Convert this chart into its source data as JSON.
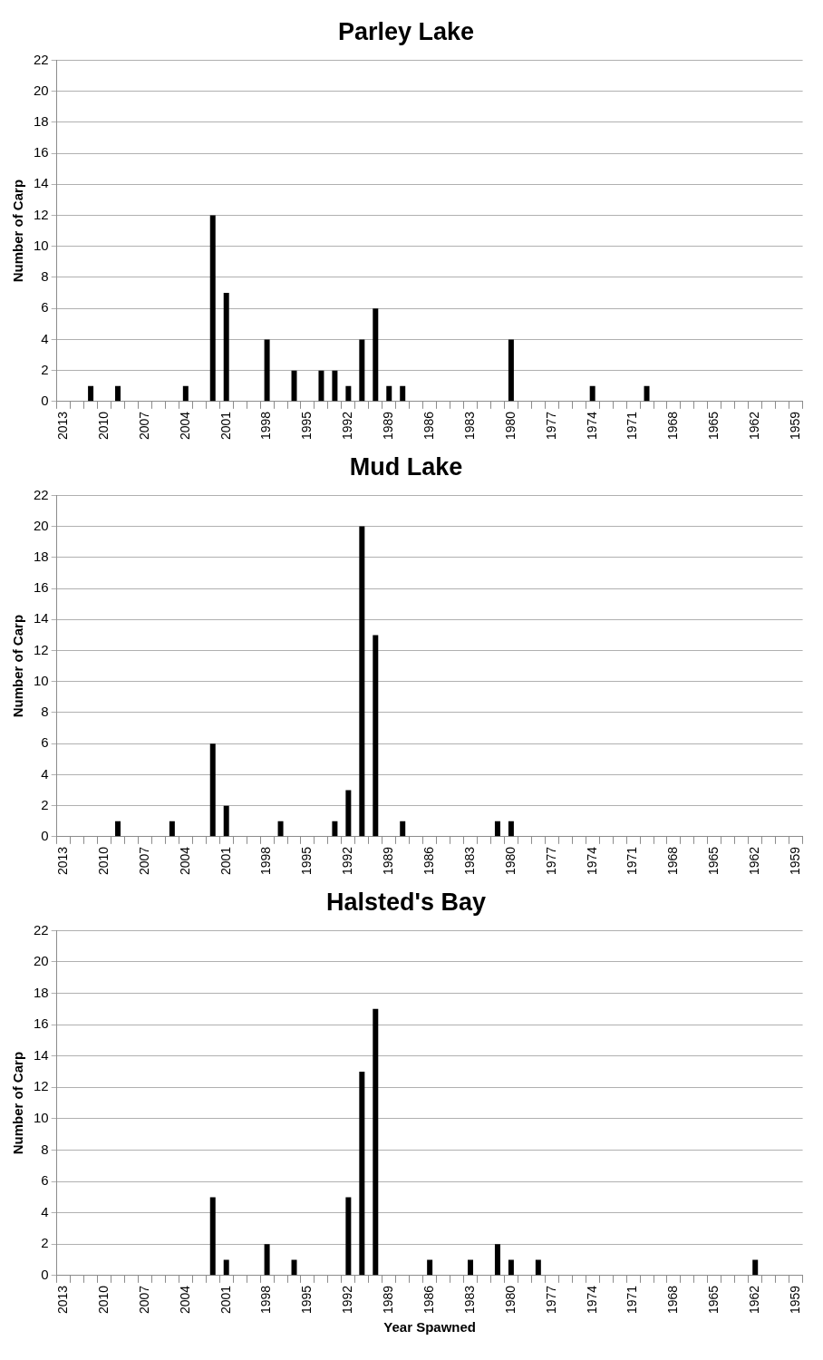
{
  "chart_data": [
    {
      "type": "bar",
      "title": "Parley Lake",
      "ylabel": "Number of Carp",
      "categories": [
        "2013",
        null,
        null,
        "2010",
        null,
        null,
        "2007",
        null,
        null,
        "2004",
        null,
        null,
        "2001",
        null,
        null,
        "1998",
        null,
        null,
        "1995",
        null,
        null,
        "1992",
        null,
        null,
        "1989",
        null,
        null,
        "1986",
        null,
        null,
        "1983",
        null,
        null,
        "1980",
        null,
        null,
        "1977",
        null,
        null,
        "1974",
        null,
        null,
        "1971",
        null,
        null,
        "1968",
        null,
        null,
        "1965",
        null,
        null,
        "1962",
        null,
        null,
        "1959"
      ],
      "values": [
        0,
        0,
        1,
        0,
        1,
        0,
        0,
        0,
        0,
        1,
        0,
        12,
        7,
        0,
        0,
        4,
        0,
        2,
        0,
        2,
        2,
        1,
        4,
        6,
        1,
        1,
        0,
        0,
        0,
        0,
        0,
        0,
        0,
        4,
        0,
        0,
        0,
        0,
        0,
        1,
        0,
        0,
        0,
        1,
        0,
        0,
        0,
        0,
        0,
        0,
        0,
        0,
        0,
        0,
        0
      ],
      "color": "#000000",
      "ylim": [
        0,
        22
      ],
      "yticks": [
        0,
        2,
        4,
        6,
        8,
        10,
        12,
        14,
        16,
        18,
        20,
        22
      ],
      "grid": "y",
      "legend": false
    },
    {
      "type": "bar",
      "title": "Mud Lake",
      "ylabel": "Number of Carp",
      "categories": [
        "2013",
        null,
        null,
        "2010",
        null,
        null,
        "2007",
        null,
        null,
        "2004",
        null,
        null,
        "2001",
        null,
        null,
        "1998",
        null,
        null,
        "1995",
        null,
        null,
        "1992",
        null,
        null,
        "1989",
        null,
        null,
        "1986",
        null,
        null,
        "1983",
        null,
        null,
        "1980",
        null,
        null,
        "1977",
        null,
        null,
        "1974",
        null,
        null,
        "1971",
        null,
        null,
        "1968",
        null,
        null,
        "1965",
        null,
        null,
        "1962",
        null,
        null,
        "1959"
      ],
      "values": [
        0,
        0,
        0,
        0,
        1,
        0,
        0,
        0,
        1,
        0,
        0,
        6,
        2,
        0,
        0,
        0,
        1,
        0,
        0,
        0,
        1,
        3,
        20,
        13,
        0,
        1,
        0,
        0,
        0,
        0,
        0,
        0,
        1,
        1,
        0,
        0,
        0,
        0,
        0,
        0,
        0,
        0,
        0,
        0,
        0,
        0,
        0,
        0,
        0,
        0,
        0,
        0,
        0,
        0,
        0
      ],
      "color": "#000000",
      "ylim": [
        0,
        22
      ],
      "yticks": [
        0,
        2,
        4,
        6,
        8,
        10,
        12,
        14,
        16,
        18,
        20,
        22
      ],
      "grid": "y",
      "legend": false
    },
    {
      "type": "bar",
      "title": "Halsted's Bay",
      "ylabel": "Number of Carp",
      "xlabel": "Year Spawned",
      "categories": [
        "2013",
        null,
        null,
        "2010",
        null,
        null,
        "2007",
        null,
        null,
        "2004",
        null,
        null,
        "2001",
        null,
        null,
        "1998",
        null,
        null,
        "1995",
        null,
        null,
        "1992",
        null,
        null,
        "1989",
        null,
        null,
        "1986",
        null,
        null,
        "1983",
        null,
        null,
        "1980",
        null,
        null,
        "1977",
        null,
        null,
        "1974",
        null,
        null,
        "1971",
        null,
        null,
        "1968",
        null,
        null,
        "1965",
        null,
        null,
        "1962",
        null,
        null,
        "1959"
      ],
      "values": [
        0,
        0,
        0,
        0,
        0,
        0,
        0,
        0,
        0,
        0,
        0,
        5,
        1,
        0,
        0,
        2,
        0,
        1,
        0,
        0,
        0,
        5,
        13,
        17,
        0,
        0,
        0,
        1,
        0,
        0,
        1,
        0,
        2,
        1,
        0,
        1,
        0,
        0,
        0,
        0,
        0,
        0,
        0,
        0,
        0,
        0,
        0,
        0,
        0,
        0,
        0,
        1,
        0,
        0,
        0
      ],
      "color": "#000000",
      "ylim": [
        0,
        22
      ],
      "yticks": [
        0,
        2,
        4,
        6,
        8,
        10,
        12,
        14,
        16,
        18,
        20,
        22
      ],
      "grid": "y",
      "legend": false
    }
  ]
}
